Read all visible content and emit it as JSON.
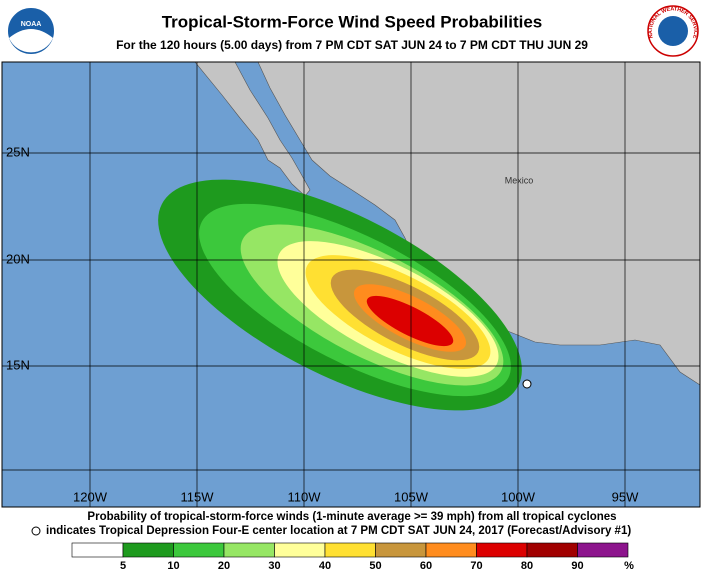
{
  "header": {
    "title": "Tropical-Storm-Force Wind Speed Probabilities",
    "subtitle": "For the 120 hours (5.00 days) from 7 PM CDT SAT JUN 24 to 7 PM CDT THU JUN 29",
    "logo_left": "NOAA",
    "logo_right": "NATIONAL WEATHER SERVICE"
  },
  "map": {
    "lat_labels": [
      "25N",
      "20N",
      "15N"
    ],
    "lon_labels": [
      "120W",
      "115W",
      "110W",
      "105W",
      "100W",
      "95W"
    ],
    "place": "Mexico"
  },
  "footer": {
    "line1": "Probability of tropical-storm-force winds (1-minute average >= 39 mph) from all tropical cyclones",
    "line2": "indicates Tropical Depression Four-E center location at 7 PM CDT SAT JUN 24, 2017 (Forecast/Advisory #1)"
  },
  "legend": {
    "labels": [
      5,
      10,
      20,
      30,
      40,
      50,
      60,
      70,
      80,
      90
    ],
    "unit": "%",
    "colors": [
      "#ffffff",
      "#1e9a1e",
      "#3cc83c",
      "#96e664",
      "#ffff9a",
      "#ffe032",
      "#c8963c",
      "#ff8c1e",
      "#dc0000",
      "#a00000",
      "#8c148c"
    ]
  }
}
